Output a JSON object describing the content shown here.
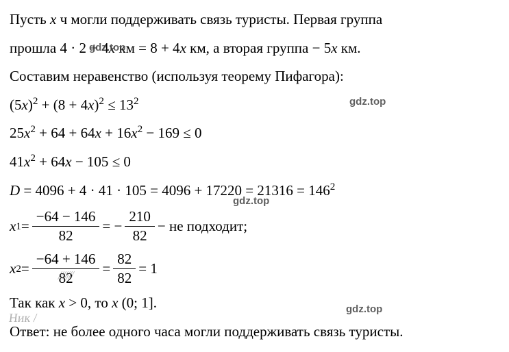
{
  "text_color": "#000000",
  "background_color": "#ffffff",
  "font_family": "Times New Roman",
  "font_size_pt": 16,
  "lines": {
    "l1a": "Пусть ",
    "l1var": "x",
    "l1b": " ч могли поддерживать связь туристы. Первая группа",
    "l2a": "прошла 4 · 2 + 4",
    "l2var1": "x",
    "l2b": " км = 8 + 4",
    "l2var2": "x",
    "l2c": " км, а вторая группа − 5",
    "l2var3": "x",
    "l2d": " км.",
    "l3": "Составим неравенство (используя теорему Пифагора):",
    "l4a": "(5",
    "l4var1": "x",
    "l4b": ")",
    "l4sup1": "2",
    "l4c": " + (8 + 4",
    "l4var2": "x",
    "l4d": ")",
    "l4sup2": "2",
    "l4e": " ≤ 13",
    "l4sup3": "2",
    "l5a": "25",
    "l5var1": "x",
    "l5sup1": "2",
    "l5b": " + 64 + 64",
    "l5var2": "x",
    "l5c": " + 16",
    "l5var3": "x",
    "l5sup2": "2",
    "l5d": " − 169 ≤ 0",
    "l6a": "41",
    "l6var1": "x",
    "l6sup1": "2",
    "l6b": " + 64",
    "l6var2": "x",
    "l6c": " − 105 ≤ 0",
    "l7a": "D",
    "l7b": " = 4096 + 4 · 41 · 105 = 4096 + 17220 = 21316 = 146",
    "l7sup": "2",
    "x1_label_var": "x",
    "x1_label_sub": "1",
    "x1_eq": " = ",
    "x1_num1": "−64 − 146",
    "x1_den1": "82",
    "x1_mid": " = − ",
    "x1_num2": "210",
    "x1_den2": "82",
    "x1_tail": " − не подходит;",
    "x2_label_var": "x",
    "x2_label_sub": "2",
    "x2_eq": " = ",
    "x2_num1": "−64 + 146",
    "x2_den1": "82",
    "x2_mid": " = ",
    "x2_num2": "82",
    "x2_den2": "82",
    "x2_tail": " = 1",
    "l10a": "Так как ",
    "l10var": "x",
    "l10b": " > 0, то ",
    "l10var2": "x",
    "l10c": " (0; 1].",
    "l11": "Ответ: не более одного часа могли поддерживать связь туристы.",
    "watermark": "gdz.top"
  },
  "watermark_style": {
    "color": "#444444",
    "font_family": "Arial",
    "font_weight": "bold",
    "font_size": 15,
    "opacity": 0.85
  },
  "scratch_marks": {
    "sc1": "///////",
    "sc2": "Ник /"
  }
}
